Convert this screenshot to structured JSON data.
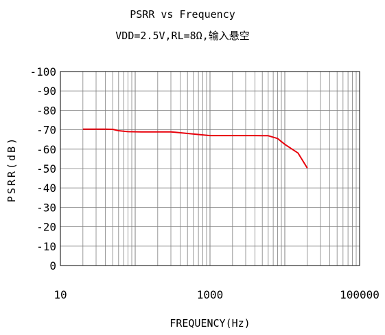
{
  "chart_data": {
    "type": "line",
    "title": "PSRR vs Frequency",
    "subtitle": "VDD=2.5V,RL=8Ω,输入悬空",
    "xlabel": "FREQUENCY(Hz)",
    "ylabel": "PSRR(dB)",
    "x_scale": "log",
    "xlim": [
      10,
      100000
    ],
    "ylim": [
      0,
      -100
    ],
    "grid": true,
    "x_tick_labels": [
      "10",
      "1000",
      "100000"
    ],
    "y_tick_labels": [
      "-100",
      "-90",
      "-80",
      "-70",
      "-60",
      "-50",
      "-40",
      "-30",
      "-20",
      "-10",
      "0"
    ],
    "colors": {
      "line": "#e8000b",
      "grid": "#7f7f7f",
      "axis": "#000000"
    },
    "series": [
      {
        "x": [
          20,
          40,
          50,
          60,
          80,
          120,
          200,
          300,
          500,
          1000,
          2000,
          4000,
          6000,
          8000,
          10000,
          15000,
          20000
        ],
        "y": [
          -70.3,
          -70.3,
          -70.2,
          -69.5,
          -69.0,
          -68.9,
          -68.9,
          -68.9,
          -68.1,
          -67.0,
          -67.0,
          -67.0,
          -66.9,
          -65.5,
          -62.5,
          -58.0,
          -50.2
        ]
      }
    ]
  }
}
